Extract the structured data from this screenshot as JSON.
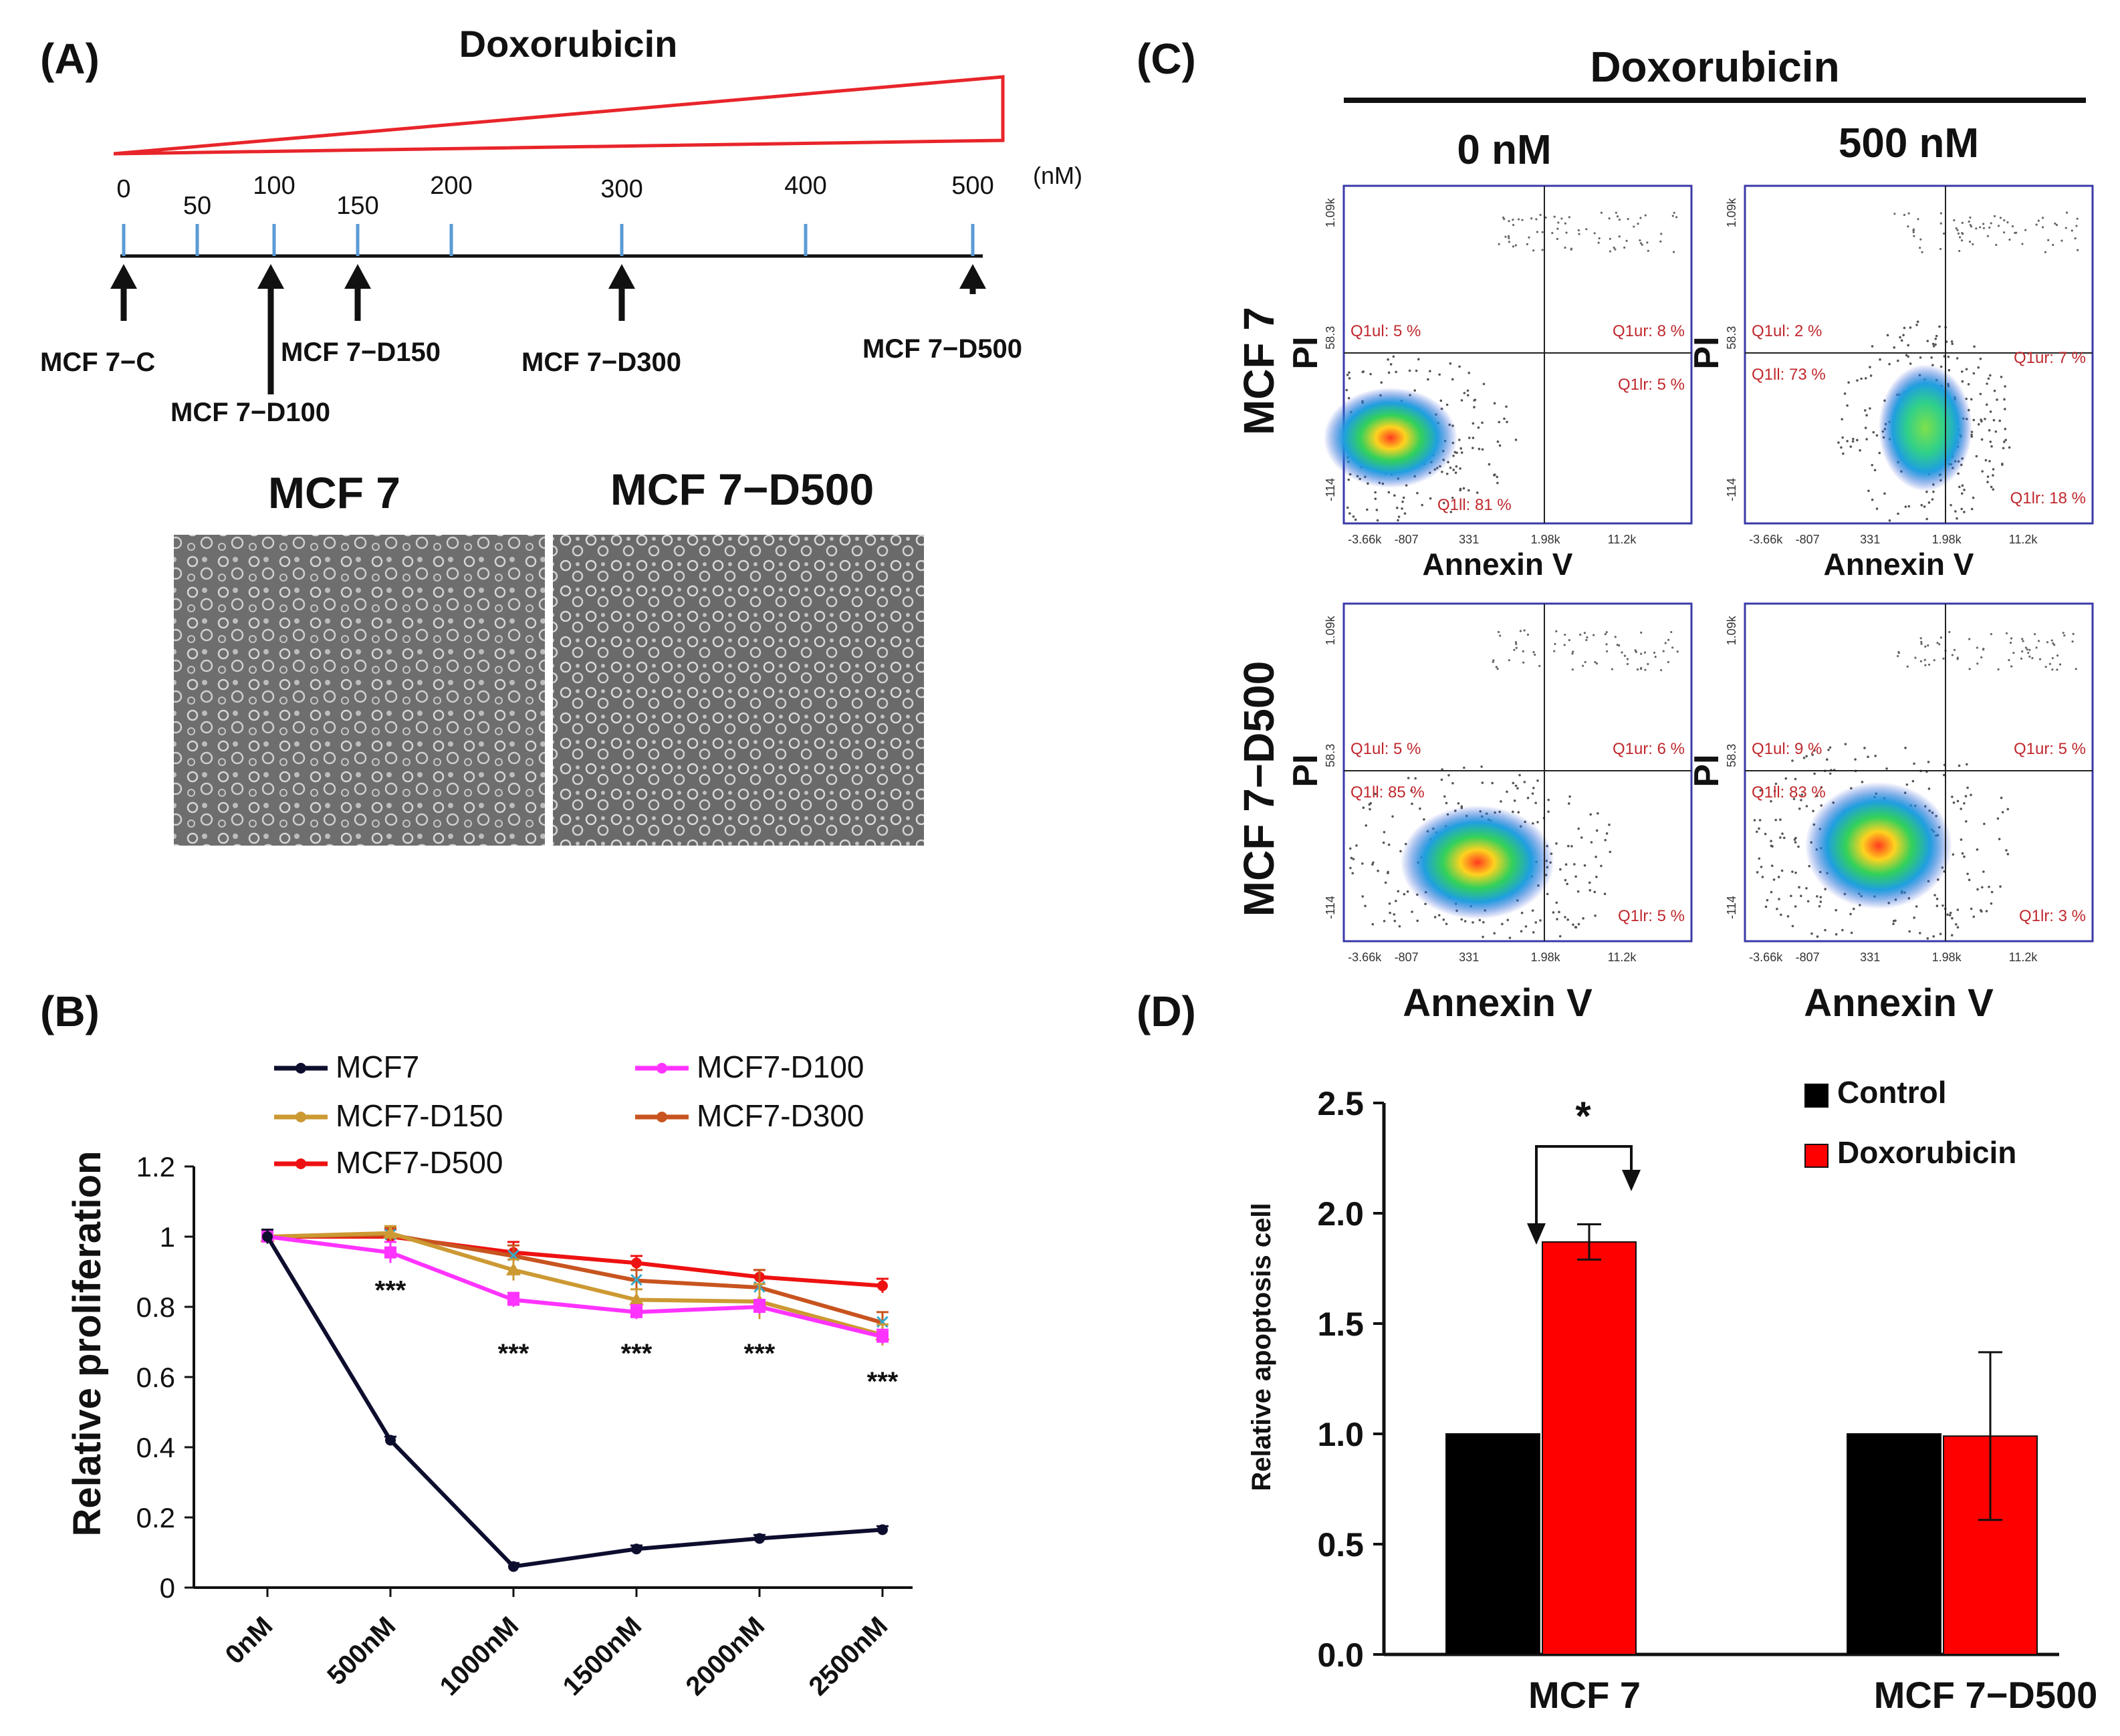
{
  "panels": {
    "a": "(A)",
    "b": "(B)",
    "c": "(C)",
    "d": "(D)"
  },
  "panel_a": {
    "title": "Doxorubicin",
    "unit": "(nM)",
    "ticks": [
      "0",
      "50",
      "100",
      "150",
      "200",
      "300",
      "400",
      "500"
    ],
    "tick_values": [
      0,
      50,
      100,
      150,
      200,
      300,
      400,
      500
    ],
    "arrows": [
      {
        "label": "MCF 7−C",
        "value": 0
      },
      {
        "label": "MCF 7−D100",
        "value": 100
      },
      {
        "label": "MCF 7−D150",
        "value": 150
      },
      {
        "label": "MCF 7−D300",
        "value": 300
      },
      {
        "label": "MCF 7−D500",
        "value": 500
      }
    ],
    "image_labels": [
      "MCF 7",
      "MCF 7−D500"
    ],
    "wedge_color": "#e8252a",
    "tick_color": "#5b9bd5"
  },
  "chart_data": [
    {
      "type": "line",
      "panel": "(B)",
      "ylabel": "Relative proliferation",
      "xlabel": "",
      "categories": [
        "0nM",
        "500nM",
        "1000nM",
        "1500nM",
        "2000nM",
        "2500nM"
      ],
      "ylim": [
        0,
        1.2
      ],
      "yticks": [
        "0",
        "0.2",
        "0.4",
        "0.6",
        "0.8",
        "1",
        "1.2"
      ],
      "legend": "top",
      "series": [
        {
          "name": "MCF7",
          "color": "#0d0d2e",
          "values": [
            1.0,
            0.42,
            0.06,
            0.11,
            0.14,
            0.165
          ],
          "errors": [
            0.02,
            0.01,
            0.01,
            0.01,
            0.01,
            0.01
          ]
        },
        {
          "name": "MCF7-D100",
          "color": "#ff33ff",
          "values": [
            1.0,
            0.955,
            0.82,
            0.785,
            0.8,
            0.715
          ],
          "errors": [
            0.02,
            0.03,
            0.02,
            0.02,
            0.02,
            0.02
          ]
        },
        {
          "name": "MCF7-D150",
          "color": "#cc9933",
          "values": [
            1.0,
            1.01,
            0.905,
            0.82,
            0.815,
            0.72
          ],
          "errors": [
            0.02,
            0.02,
            0.03,
            0.03,
            0.05,
            0.03
          ]
        },
        {
          "name": "MCF7-D300",
          "color": "#c8541f",
          "values": [
            1.0,
            1.005,
            0.945,
            0.875,
            0.855,
            0.755
          ],
          "errors": [
            0.02,
            0.02,
            0.03,
            0.03,
            0.05,
            0.03
          ]
        },
        {
          "name": "MCF7-D500",
          "color": "#ee1111",
          "values": [
            1.0,
            1.0,
            0.955,
            0.925,
            0.885,
            0.86
          ],
          "errors": [
            0.02,
            0.02,
            0.03,
            0.02,
            0.02,
            0.02
          ]
        }
      ],
      "annotations": [
        "***",
        "***",
        "***",
        "***",
        "***"
      ],
      "annotation_positions": [
        [
          1,
          0.86
        ],
        [
          2,
          0.68
        ],
        [
          3,
          0.68
        ],
        [
          4,
          0.68
        ],
        [
          5,
          0.6
        ]
      ]
    },
    {
      "type": "bar",
      "panel": "(D)",
      "ylabel": "Relative apoptosis cell",
      "xlabel": "",
      "categories": [
        "MCF 7",
        "MCF 7−D500"
      ],
      "ylim": [
        0,
        2.5
      ],
      "yticks": [
        "0.0",
        "0.5",
        "1.0",
        "1.5",
        "2.0",
        "2.5"
      ],
      "legend": "top-right",
      "series": [
        {
          "name": "Control",
          "color": "#000000",
          "values": [
            1.0,
            1.0
          ],
          "errors": [
            0,
            0
          ]
        },
        {
          "name": "Doxorubicin",
          "color": "#ff0000",
          "values": [
            1.87,
            0.99
          ],
          "errors": [
            0.08,
            0.38
          ]
        }
      ],
      "annotation": "*"
    }
  ],
  "panel_c": {
    "title": "Doxorubicin",
    "columns": [
      "0 nM",
      "500 nM"
    ],
    "rows": [
      "MCF 7",
      "MCF 7−D500"
    ],
    "y_axis_label": "PI",
    "x_axis_label": "Annexin V",
    "x_ticks": [
      "-3.66k",
      "-807",
      "331",
      "1.98k",
      "11.2k"
    ],
    "y_ticks": [
      "-114",
      "58.3",
      "1.09k"
    ],
    "plots": [
      {
        "ul": "Q1ul: 5 %",
        "ur": "Q1ur: 8 %",
        "ll": "Q1ll: 81 %",
        "lr": "Q1lr: 5 %"
      },
      {
        "ul": "Q1ul: 2 %",
        "ur": "Q1ur: 7 %",
        "ll": "Q1ll: 73 %",
        "lr": "Q1lr: 18 %"
      },
      {
        "ul": "Q1ul: 5 %",
        "ur": "Q1ur: 6 %",
        "ll": "Q1ll: 85 %",
        "lr": "Q1lr: 5 %"
      },
      {
        "ul": "Q1ul: 9 %",
        "ur": "Q1ur: 5 %",
        "ll": "Q1ll: 83 %",
        "lr": "Q1lr: 3 %"
      }
    ],
    "box_color": "#3a3aa8",
    "quad_label_color": "#c0282d"
  }
}
